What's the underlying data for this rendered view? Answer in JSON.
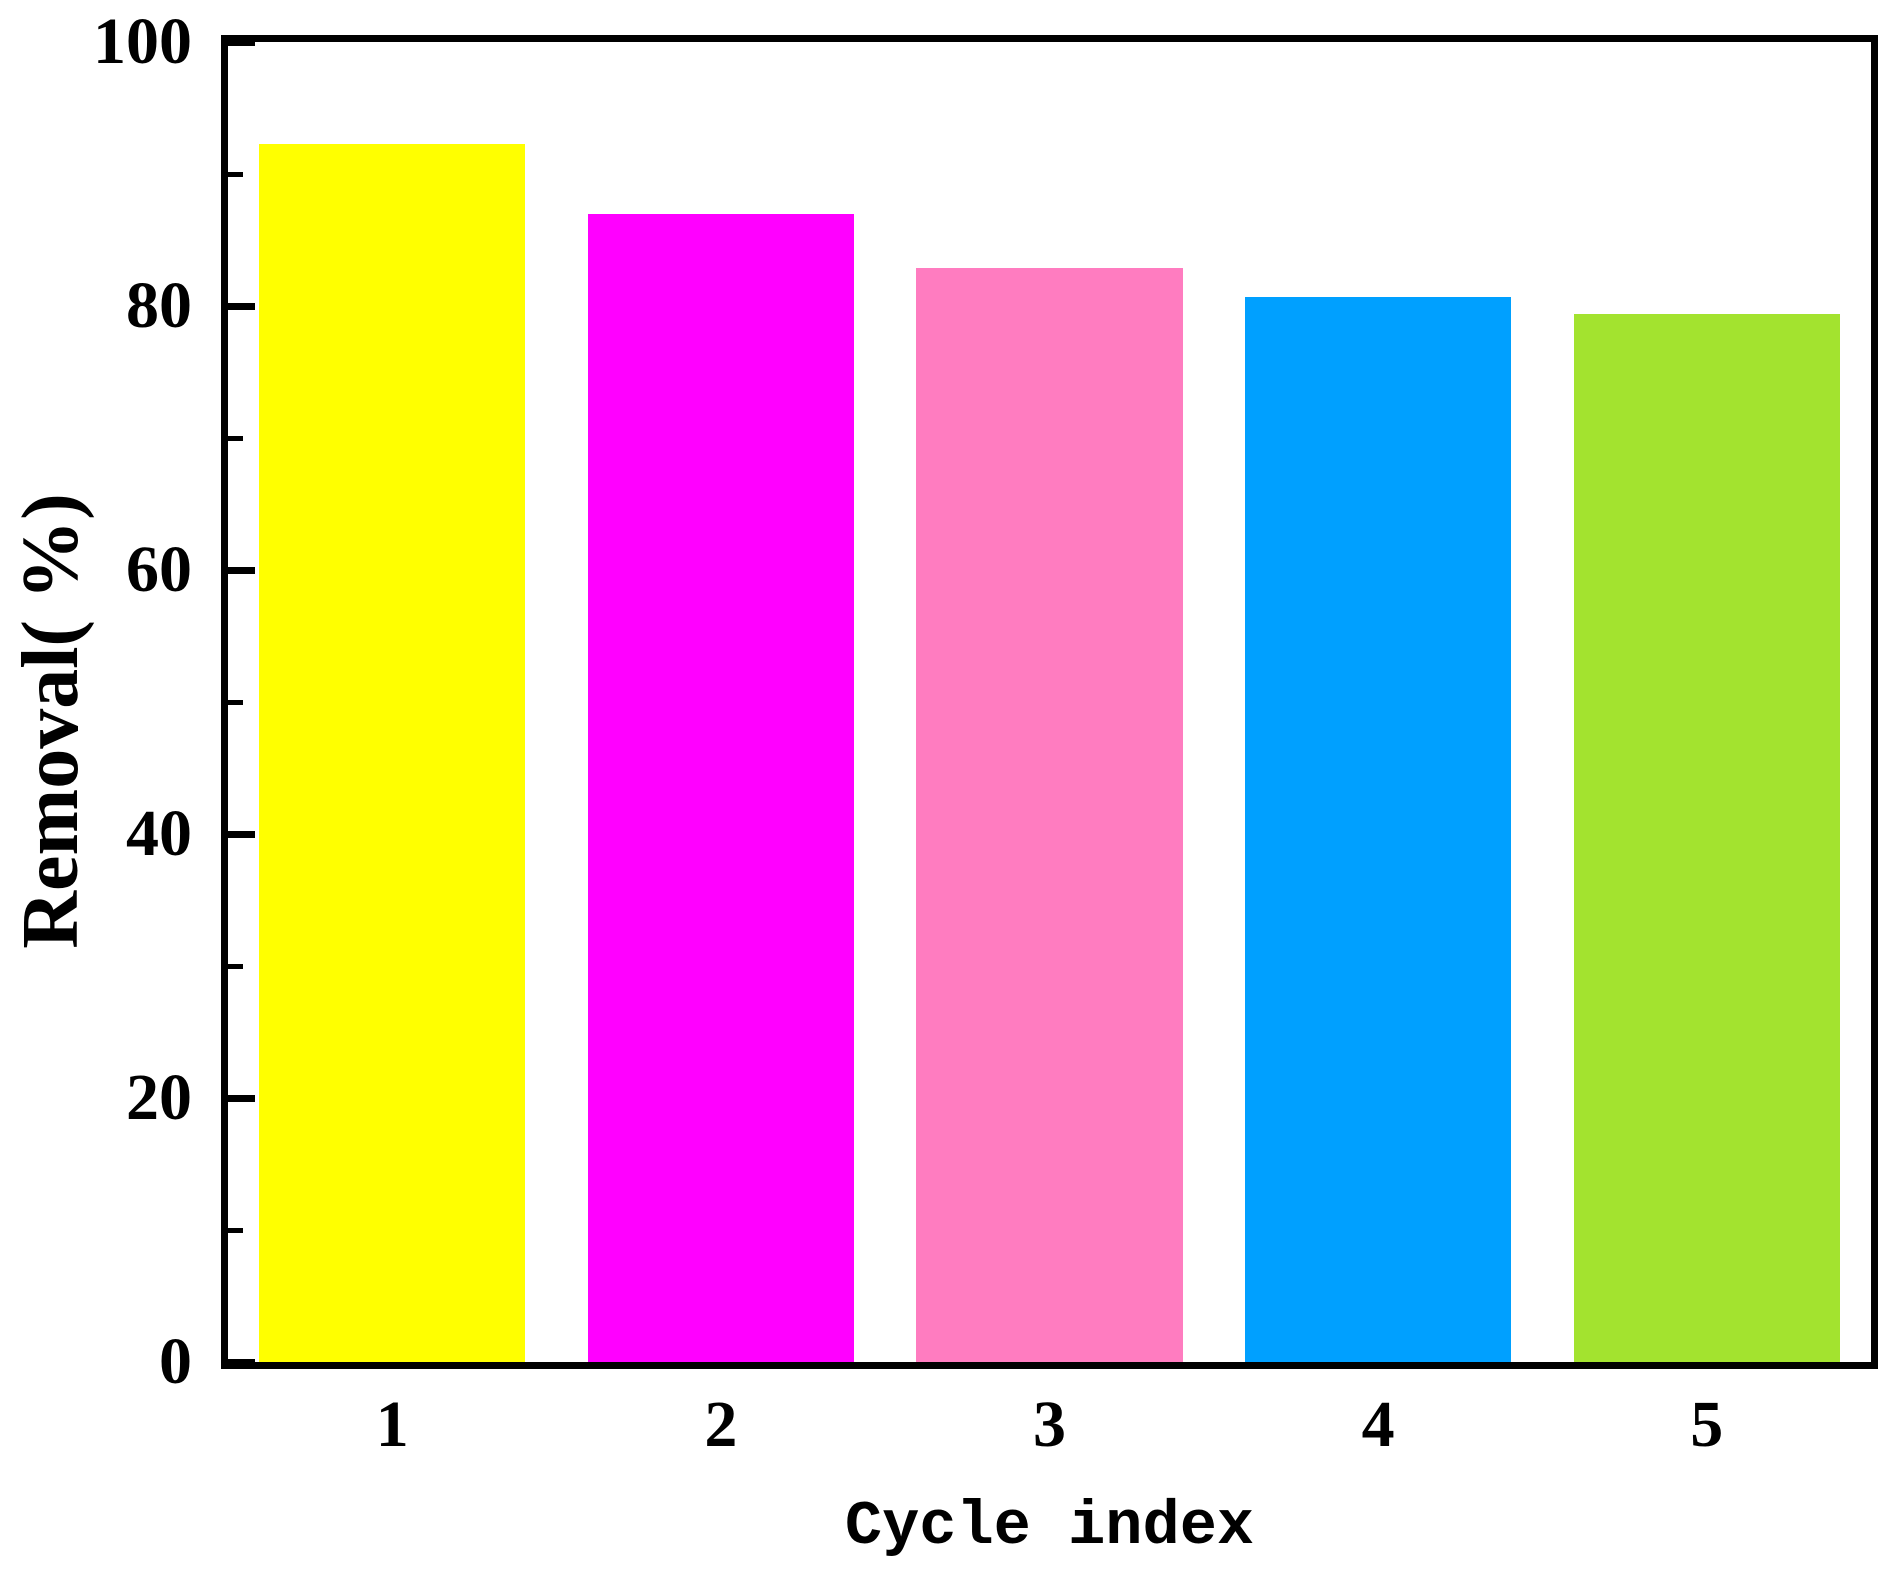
{
  "figure": {
    "background": "#ffffff",
    "axis_color": "#000000"
  },
  "chart_data": {
    "type": "bar",
    "title": "",
    "xlabel": "Cycle index",
    "ylabel": "Removal( %)",
    "categories": [
      "1",
      "2",
      "3",
      "4",
      "5"
    ],
    "values": [
      92.3,
      87.0,
      82.9,
      80.7,
      79.4
    ],
    "bar_colors": [
      "#ffff00",
      "#ff00ff",
      "#ff7cc0",
      "#00a0ff",
      "#a3e32f"
    ],
    "ylim": [
      0,
      100
    ],
    "y_major_ticks": [
      0,
      20,
      40,
      60,
      80,
      100
    ],
    "y_minor_ticks": [
      10,
      30,
      50,
      70,
      90
    ],
    "bar_width_fraction": 0.81,
    "grid": false,
    "legend": "none",
    "frame": "box",
    "tick_direction": "in"
  }
}
